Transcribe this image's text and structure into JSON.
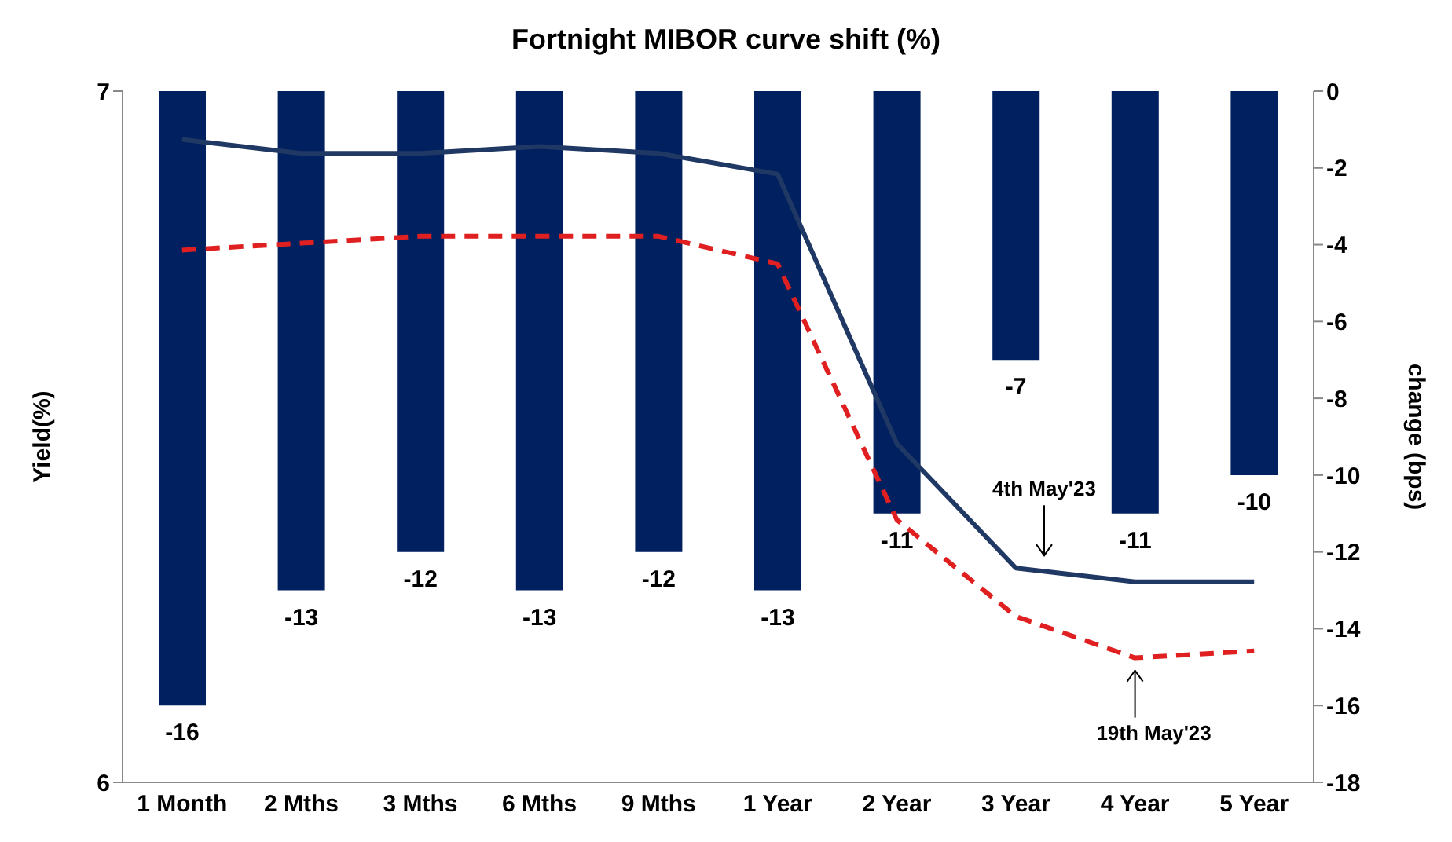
{
  "chart_data": {
    "type": "bar",
    "title": "Fortnight MIBOR curve shift (%)",
    "ylabel": "Yield(%)",
    "y2label": "change (bps)",
    "categories": [
      "1 Month",
      "2 Mths",
      "3 Mths",
      "6 Mths",
      "9 Mths",
      "1 Year",
      "2 Year",
      "3 Year",
      "4 Year",
      "5 Year"
    ],
    "ylim": [
      6,
      7
    ],
    "yticks": [
      6,
      7
    ],
    "y2lim": [
      -18,
      0
    ],
    "y2ticks": [
      0,
      -2,
      -4,
      -6,
      -8,
      -10,
      -12,
      -14,
      -16,
      -18
    ],
    "marker": "none",
    "series": [
      {
        "axis": "y2",
        "color": "#002060",
        "values": [
          -16,
          -13,
          -12,
          -13,
          -12,
          -13,
          -11,
          -7,
          -11,
          -10
        ],
        "value_labels": [
          "-16",
          "-13",
          "-12",
          "-13",
          "-12",
          "-13",
          "-11",
          "-7",
          "-11",
          "-10"
        ]
      },
      {
        "type": "line",
        "name": "4th May'23",
        "color": "#1f3864",
        "line_style": "solid",
        "values": [
          6.93,
          6.91,
          6.91,
          6.92,
          6.91,
          6.88,
          6.49,
          6.31,
          6.29,
          6.29
        ]
      },
      {
        "type": "line",
        "name": "19th May'23",
        "color": "#e02020",
        "line_style": "dashed",
        "values": [
          6.77,
          6.78,
          6.79,
          6.79,
          6.79,
          6.75,
          6.38,
          6.24,
          6.18,
          6.19
        ]
      }
    ]
  }
}
